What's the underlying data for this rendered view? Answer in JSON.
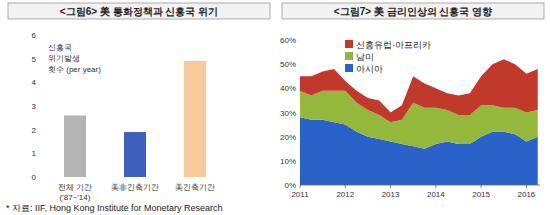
{
  "chart_data": [
    {
      "type": "bar",
      "title": "<그림6> 美 통화정책과 신흥국 위기",
      "y_label": "신흥국\n위기발생\n횟수 (per year)",
      "categories": [
        "전체 기간\n('87~'14)",
        "美非긴축기간",
        "美긴축기간"
      ],
      "values": [
        2.6,
        1.9,
        4.9
      ],
      "colors": [
        "#b4b4b4",
        "#3f5fbf",
        "#f8c99b"
      ],
      "ylim": [
        0,
        6
      ],
      "yticks": [
        0,
        1,
        2,
        3,
        4,
        5,
        6
      ],
      "grid": false
    },
    {
      "type": "area",
      "title": "<그림7> 美 금리인상의 신흥국 영향",
      "stacked": true,
      "x": [
        2011,
        2011.25,
        2011.5,
        2011.75,
        2012,
        2012.25,
        2012.5,
        2012.75,
        2013,
        2013.25,
        2013.5,
        2013.75,
        2014,
        2014.25,
        2014.5,
        2014.75,
        2015,
        2015.25,
        2015.5,
        2015.75,
        2016,
        2016.25
      ],
      "series": [
        {
          "name": "아시아",
          "color": "#2a62c9",
          "values": [
            28,
            27,
            27,
            26,
            25,
            22,
            20,
            19,
            18,
            17,
            16,
            15,
            17,
            18,
            17,
            17,
            20,
            22,
            22,
            21,
            18,
            20
          ]
        },
        {
          "name": "남미",
          "color": "#93b83c",
          "values": [
            11,
            10,
            12,
            13,
            14,
            12,
            11,
            10,
            8,
            10,
            18,
            17,
            15,
            13,
            12,
            12,
            13,
            11,
            10,
            11,
            12,
            11
          ]
        },
        {
          "name": "신흥유럽·아프리카",
          "color": "#c0392b",
          "values": [
            6,
            8,
            8,
            9,
            4,
            5,
            5,
            6,
            4,
            6,
            11,
            10,
            8,
            7,
            8,
            9,
            12,
            17,
            20,
            18,
            16,
            17
          ]
        }
      ],
      "xlim": [
        2011,
        2016.3
      ],
      "xticks": [
        2011,
        2012,
        2013,
        2014,
        2015,
        2016
      ],
      "ylim": [
        0,
        60
      ],
      "yticks": [
        {
          "value": 0,
          "label": "0%"
        },
        {
          "value": 10,
          "label": "10%"
        },
        {
          "value": 20,
          "label": "20%"
        },
        {
          "value": 30,
          "label": "30%"
        },
        {
          "value": 40,
          "label": "40%"
        },
        {
          "value": 50,
          "label": "50%"
        },
        {
          "value": 60,
          "label": "60%"
        }
      ],
      "legend": "upper left",
      "grid": false
    }
  ],
  "source": "* 자료: IIF, Hong Kong Institute for Monetary Research"
}
